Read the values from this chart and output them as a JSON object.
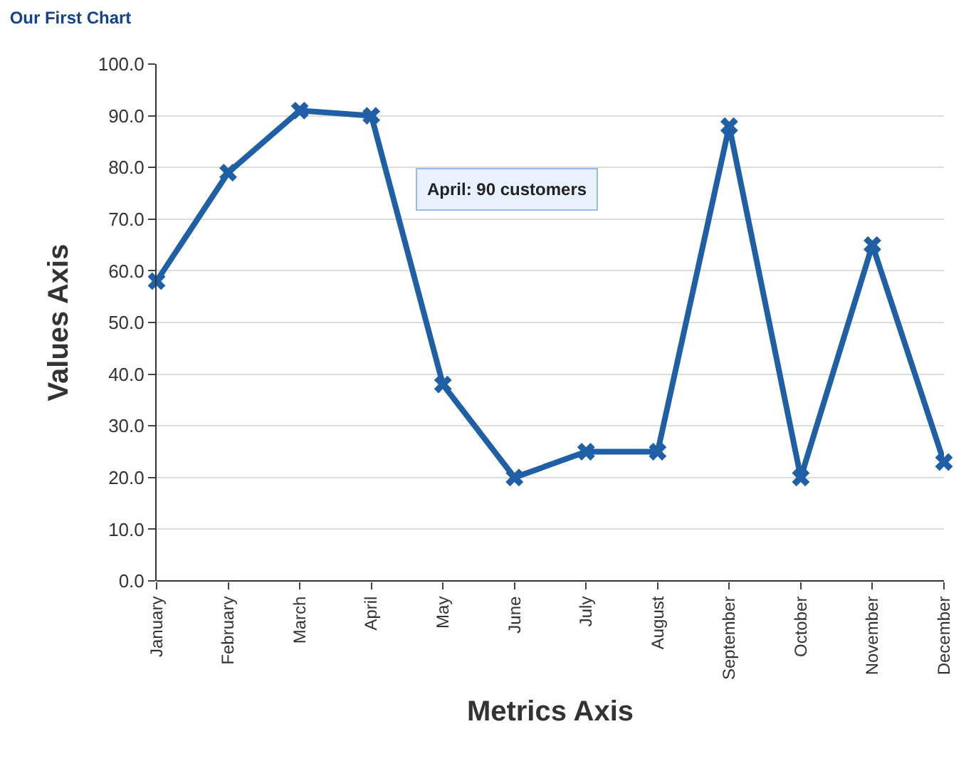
{
  "chart_data": {
    "type": "line",
    "title": "Our First Chart",
    "xlabel": "Metrics Axis",
    "ylabel": "Values Axis",
    "categories": [
      "January",
      "February",
      "March",
      "April",
      "May",
      "June",
      "July",
      "August",
      "September",
      "October",
      "November",
      "December"
    ],
    "series": [
      {
        "color": "#1f5fa6",
        "values": [
          58,
          79,
          91,
          90,
          38,
          20,
          25,
          25,
          88,
          20,
          65,
          23
        ]
      }
    ],
    "ylim": [
      0,
      100
    ],
    "yticks": [
      {
        "value": 0,
        "label": "0.0"
      },
      {
        "value": 10,
        "label": "10.0"
      },
      {
        "value": 20,
        "label": "20.0"
      },
      {
        "value": 30,
        "label": "30.0"
      },
      {
        "value": 40,
        "label": "40.0"
      },
      {
        "value": 50,
        "label": "50.0"
      },
      {
        "value": 60,
        "label": "60.0"
      },
      {
        "value": 70,
        "label": "70.0"
      },
      {
        "value": 80,
        "label": "80.0"
      },
      {
        "value": 90,
        "label": "90.0"
      },
      {
        "value": 100,
        "label": "100.0"
      }
    ],
    "grid": "y",
    "marker": "cross",
    "line_style": "solid",
    "annotations": [
      "April: 90 customers"
    ]
  }
}
